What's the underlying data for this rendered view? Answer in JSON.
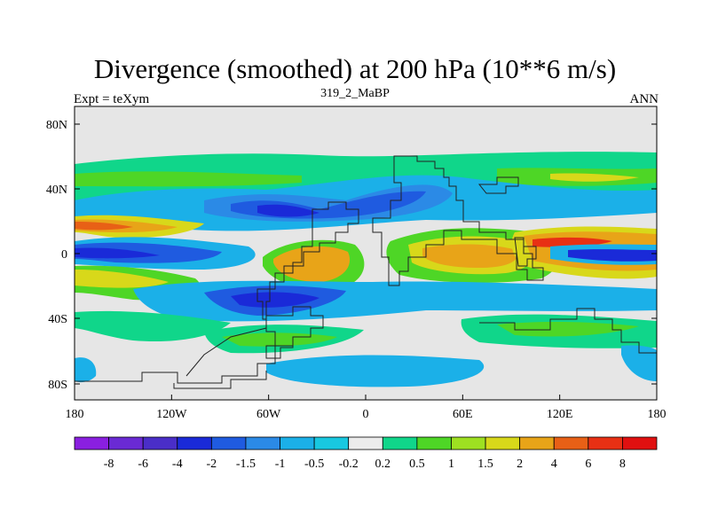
{
  "map": {
    "title": "Divergence (smoothed) at 200 hPa (10**6 m/s)",
    "left_label": "Expt = teXym",
    "center_label": "319_2_MaBP",
    "right_label": "ANN",
    "lat_ticks": [
      "80N",
      "40N",
      "0",
      "40S",
      "80S"
    ],
    "lon_ticks": [
      "180",
      "120W",
      "60W",
      "0",
      "60E",
      "120E",
      "180"
    ]
  },
  "colorbar": {
    "labels": [
      "-8",
      "-6",
      "-4",
      "-2",
      "-1.5",
      "-1",
      "-0.5",
      "-0.2",
      "0.2",
      "0.5",
      "1",
      "1.5",
      "2",
      "4",
      "6",
      "8"
    ],
    "colors": [
      "#8a1fe0",
      "#6a2ad4",
      "#4a2ec8",
      "#1a2ad8",
      "#1f5be0",
      "#2b8ae6",
      "#1bb0e8",
      "#18c8e0",
      "#ececec",
      "#10d68a",
      "#4ed626",
      "#9ee021",
      "#d8d81a",
      "#e8a418",
      "#e86016",
      "#e83014",
      "#e01010"
    ]
  }
}
